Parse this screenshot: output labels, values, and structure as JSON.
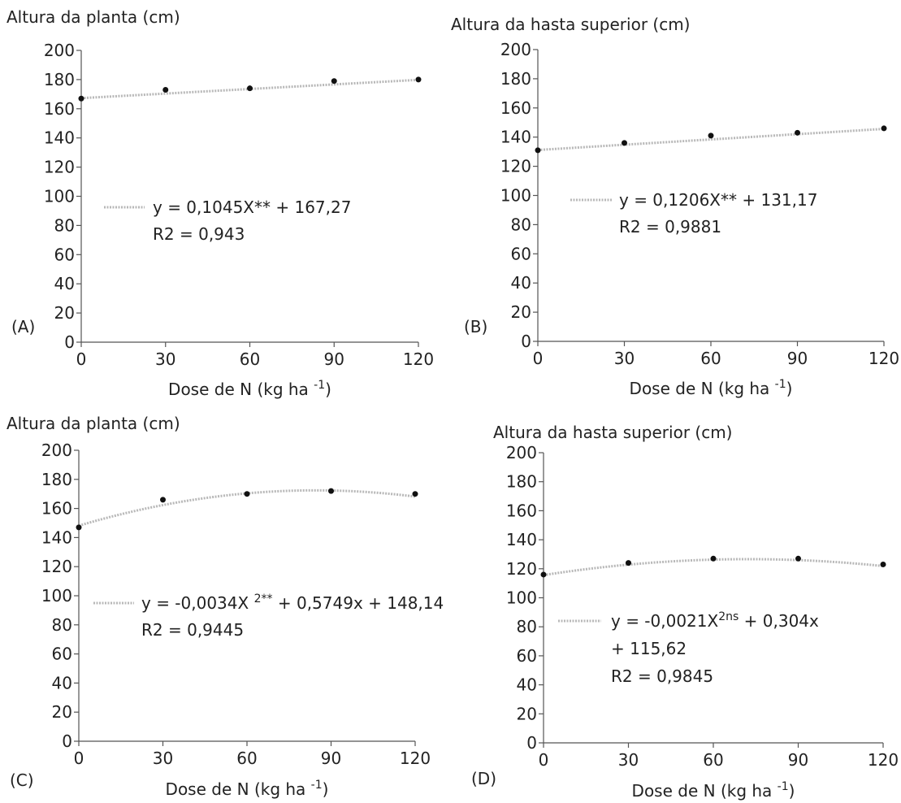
{
  "chart_data": [
    {
      "panel": "(A)",
      "type": "scatter",
      "title": "Altura da planta (cm)",
      "xlabel": "Dose de N (kg ha -1)",
      "xlabel_main": "Dose de N (kg ha ",
      "xlabel_sup": "-1",
      "xlabel_tail": ")",
      "ylabel": "",
      "x_ticks": [
        "0",
        "30",
        "60",
        "90",
        "120"
      ],
      "y_ticks": [
        "0",
        "20",
        "40",
        "60",
        "80",
        "100",
        "120",
        "140",
        "160",
        "180",
        "200"
      ],
      "xlim": [
        0,
        120
      ],
      "ylim": [
        0,
        200
      ],
      "grid": false,
      "points": {
        "x": [
          0,
          30,
          60,
          90,
          120
        ],
        "y": [
          167,
          173,
          174,
          179,
          180
        ]
      },
      "trend": {
        "kind": "linear",
        "a": 0,
        "b": 0.1045,
        "c": 167.27
      },
      "legend_lines": [
        {
          "main": "y = 0,1045X** + 167,27",
          "sup": "",
          "tail": ""
        },
        {
          "main": "R2 = 0,943",
          "sup": "",
          "tail": ""
        }
      ]
    },
    {
      "panel": "(B)",
      "type": "scatter",
      "title": "Altura da hasta superior (cm)",
      "xlabel": "Dose de N (kg ha -1)",
      "xlabel_main": "Dose de N (kg ha ",
      "xlabel_sup": "-1",
      "xlabel_tail": ")",
      "ylabel": "",
      "x_ticks": [
        "0",
        "30",
        "60",
        "90",
        "120"
      ],
      "y_ticks": [
        "0",
        "20",
        "40",
        "60",
        "80",
        "100",
        "120",
        "140",
        "160",
        "180",
        "200"
      ],
      "xlim": [
        0,
        120
      ],
      "ylim": [
        0,
        200
      ],
      "grid": false,
      "points": {
        "x": [
          0,
          30,
          60,
          90,
          120
        ],
        "y": [
          131,
          136,
          141,
          143,
          146
        ]
      },
      "trend": {
        "kind": "linear",
        "a": 0,
        "b": 0.1206,
        "c": 131.17
      },
      "legend_lines": [
        {
          "main": "y = 0,1206X** + 131,17",
          "sup": "",
          "tail": ""
        },
        {
          "main": "R2 = 0,9881",
          "sup": "",
          "tail": ""
        }
      ]
    },
    {
      "panel": "(C)",
      "type": "scatter",
      "title": "Altura da planta (cm)",
      "xlabel": "Dose de N (kg ha -1)",
      "xlabel_main": "Dose de N (kg ha ",
      "xlabel_sup": "-1",
      "xlabel_tail": ")",
      "ylabel": "",
      "x_ticks": [
        "0",
        "30",
        "60",
        "90",
        "120"
      ],
      "y_ticks": [
        "0",
        "20",
        "40",
        "60",
        "80",
        "100",
        "120",
        "140",
        "160",
        "180",
        "200"
      ],
      "xlim": [
        0,
        120
      ],
      "ylim": [
        0,
        200
      ],
      "grid": false,
      "points": {
        "x": [
          0,
          30,
          60,
          90,
          120
        ],
        "y": [
          147,
          166,
          170,
          172,
          170
        ]
      },
      "trend": {
        "kind": "quadratic",
        "a": -0.0034,
        "b": 0.5749,
        "c": 148.14
      },
      "legend_lines": [
        {
          "main": "y = -0,0034X ",
          "sup": "2**",
          "tail": " + 0,5749x + 148,14"
        },
        {
          "main": "R2 = 0,9445",
          "sup": "",
          "tail": ""
        }
      ]
    },
    {
      "panel": "(D)",
      "type": "scatter",
      "title": "Altura da hasta superior (cm)",
      "xlabel": "Dose de N (kg ha -1)",
      "xlabel_main": "Dose de N (kg ha ",
      "xlabel_sup": "-1",
      "xlabel_tail": ")",
      "ylabel": "",
      "x_ticks": [
        "0",
        "30",
        "60",
        "90",
        "120"
      ],
      "y_ticks": [
        "0",
        "20",
        "40",
        "60",
        "80",
        "100",
        "120",
        "140",
        "160",
        "180",
        "200"
      ],
      "xlim": [
        0,
        120
      ],
      "ylim": [
        0,
        200
      ],
      "grid": false,
      "points": {
        "x": [
          0,
          30,
          60,
          90,
          120
        ],
        "y": [
          116,
          124,
          127,
          127,
          123
        ]
      },
      "trend": {
        "kind": "quadratic",
        "a": -0.0021,
        "b": 0.304,
        "c": 115.62
      },
      "legend_lines": [
        {
          "main": "y = -0,0021X",
          "sup": "2ns",
          "tail": " + 0,304x"
        },
        {
          "main": "+ 115,62",
          "sup": "",
          "tail": ""
        },
        {
          "main": "R2 = 0,9845",
          "sup": "",
          "tail": ""
        }
      ]
    }
  ]
}
